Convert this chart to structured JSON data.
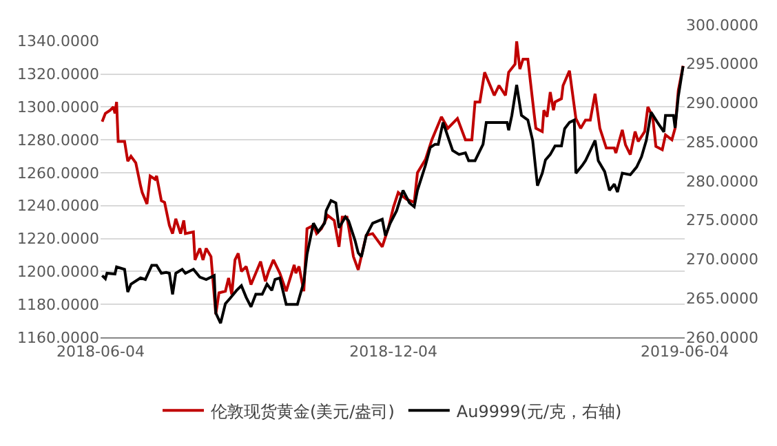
{
  "chart_data": {
    "type": "line",
    "xlim": [
      "2018-06-04",
      "2019-06-04"
    ],
    "xticks": [
      {
        "value": "2018-06-04",
        "label": "2018-06-04"
      },
      {
        "value": "2018-12-04",
        "label": "2018-12-04"
      },
      {
        "value": "2019-06-04",
        "label": "2019-06-04"
      }
    ],
    "ylim": [
      1160,
      1340
    ],
    "yticks": [
      {
        "value": 1160,
        "label": "1160.0000"
      },
      {
        "value": 1180,
        "label": "1180.0000"
      },
      {
        "value": 1200,
        "label": "1200.0000"
      },
      {
        "value": 1220,
        "label": "1220.0000"
      },
      {
        "value": 1240,
        "label": "1240.0000"
      },
      {
        "value": 1260,
        "label": "1260.0000"
      },
      {
        "value": 1280,
        "label": "1280.0000"
      },
      {
        "value": 1300,
        "label": "1300.0000"
      },
      {
        "value": 1320,
        "label": "1320.0000"
      },
      {
        "value": 1340,
        "label": "1340.0000"
      }
    ],
    "y2lim": [
      260,
      300
    ],
    "y2ticks": [
      {
        "value": 260,
        "label": "260.0000"
      },
      {
        "value": 265,
        "label": "265.0000"
      },
      {
        "value": 270,
        "label": "270.0000"
      },
      {
        "value": 275,
        "label": "275.0000"
      },
      {
        "value": 280,
        "label": "280.0000"
      },
      {
        "value": 285,
        "label": "285.0000"
      },
      {
        "value": 290,
        "label": "290.0000"
      },
      {
        "value": 295,
        "label": "295.0000"
      },
      {
        "value": 300,
        "label": "300.0000"
      }
    ],
    "grid": "y",
    "legend": "bottom",
    "marker": "none",
    "line_style": "solid",
    "series": [
      {
        "name": "伦敦现货黄金(美元/盎司)",
        "color": "#c00000",
        "x": [
          "2018-06-05",
          "2018-06-07",
          "2018-06-10",
          "2018-06-12",
          "2018-06-13",
          "2018-06-14",
          "2018-06-15",
          "2018-06-19",
          "2018-06-21",
          "2018-06-23",
          "2018-06-26",
          "2018-06-29",
          "2018-06-30",
          "2018-07-03",
          "2018-07-05",
          "2018-07-08",
          "2018-07-09",
          "2018-07-12",
          "2018-07-14",
          "2018-07-17",
          "2018-07-19",
          "2018-07-21",
          "2018-07-24",
          "2018-07-26",
          "2018-07-27",
          "2018-08-01",
          "2018-08-02",
          "2018-08-05",
          "2018-08-07",
          "2018-08-09",
          "2018-08-12",
          "2018-08-15",
          "2018-08-17",
          "2018-08-21",
          "2018-08-23",
          "2018-08-25",
          "2018-08-27",
          "2018-08-29",
          "2018-08-31",
          "2018-09-03",
          "2018-09-06",
          "2018-09-09",
          "2018-09-12",
          "2018-09-15",
          "2018-09-17",
          "2018-09-20",
          "2018-09-24",
          "2018-09-28",
          "2018-10-03",
          "2018-10-04",
          "2018-10-06",
          "2018-10-09",
          "2018-10-11",
          "2018-10-15",
          "2018-10-17",
          "2018-10-20",
          "2018-10-24",
          "2018-10-28",
          "2018-10-31",
          "2018-11-02",
          "2018-11-05",
          "2018-11-09",
          "2018-11-12",
          "2018-11-17",
          "2018-11-21",
          "2018-11-27",
          "2018-12-01",
          "2018-12-04",
          "2018-12-07",
          "2018-12-12",
          "2018-12-17",
          "2018-12-19",
          "2018-12-24",
          "2018-12-28",
          "2019-01-03",
          "2019-01-07",
          "2019-01-13",
          "2019-01-18",
          "2019-01-22",
          "2019-01-24",
          "2019-01-27",
          "2019-01-30",
          "2019-02-05",
          "2019-02-08",
          "2019-02-12",
          "2019-02-14",
          "2019-02-18",
          "2019-02-19",
          "2019-02-21",
          "2019-02-23",
          "2019-02-26",
          "2019-03-02",
          "2019-03-03",
          "2019-03-07",
          "2019-03-08",
          "2019-03-10",
          "2019-03-12",
          "2019-03-14",
          "2019-03-15",
          "2019-03-19",
          "2019-03-20",
          "2019-03-24",
          "2019-03-28",
          "2019-03-31",
          "2019-04-03",
          "2019-04-06",
          "2019-04-09",
          "2019-04-12",
          "2019-04-16",
          "2019-04-21",
          "2019-04-22",
          "2019-04-26",
          "2019-04-28",
          "2019-05-01",
          "2019-05-04",
          "2019-05-06",
          "2019-05-10",
          "2019-05-12",
          "2019-05-15",
          "2019-05-17",
          "2019-05-21",
          "2019-05-23",
          "2019-05-27",
          "2019-05-29",
          "2019-05-31",
          "2019-06-03"
        ],
        "values": [
          1291,
          1296,
          1298,
          1300,
          1296,
          1303,
          1279,
          1279,
          1267,
          1270,
          1266,
          1252,
          1248,
          1241,
          1258,
          1256,
          1258,
          1243,
          1242,
          1228,
          1223,
          1232,
          1223,
          1231,
          1223,
          1224,
          1207,
          1214,
          1207,
          1214,
          1209,
          1174,
          1187,
          1188,
          1196,
          1186,
          1207,
          1211,
          1200,
          1203,
          1192,
          1199,
          1206,
          1194,
          1200,
          1207,
          1199,
          1188,
          1204,
          1199,
          1203,
          1188,
          1226,
          1228,
          1223,
          1226,
          1234,
          1231,
          1215,
          1233,
          1233,
          1209,
          1201,
          1222,
          1223,
          1215,
          1227,
          1239,
          1248,
          1244,
          1242,
          1260,
          1268,
          1280,
          1294,
          1287,
          1293,
          1280,
          1280,
          1303,
          1303,
          1321,
          1307,
          1313,
          1307,
          1321,
          1326,
          1340,
          1323,
          1329,
          1329,
          1295,
          1287,
          1285,
          1298,
          1294,
          1309,
          1298,
          1303,
          1305,
          1313,
          1322,
          1293,
          1287,
          1292,
          1292,
          1308,
          1287,
          1275,
          1275,
          1272,
          1286,
          1277,
          1271,
          1285,
          1279,
          1285,
          1300,
          1294,
          1276,
          1274,
          1283,
          1280,
          1287,
          1310,
          1325
        ]
      },
      {
        "name": "Au9999(元/克，右轴)",
        "color": "#000000",
        "axis": "y2",
        "x": [
          "2018-06-05",
          "2018-06-07",
          "2018-06-08",
          "2018-06-13",
          "2018-06-14",
          "2018-06-19",
          "2018-06-21",
          "2018-06-23",
          "2018-06-29",
          "2018-07-02",
          "2018-07-06",
          "2018-07-09",
          "2018-07-12",
          "2018-07-15",
          "2018-07-17",
          "2018-07-19",
          "2018-07-21",
          "2018-07-25",
          "2018-07-27",
          "2018-08-01",
          "2018-08-05",
          "2018-08-09",
          "2018-08-14",
          "2018-08-15",
          "2018-08-18",
          "2018-08-21",
          "2018-08-24",
          "2018-08-28",
          "2018-08-31",
          "2018-09-03",
          "2018-09-06",
          "2018-09-09",
          "2018-09-13",
          "2018-09-16",
          "2018-09-19",
          "2018-09-21",
          "2018-09-24",
          "2018-09-28",
          "2018-10-02",
          "2018-10-05",
          "2018-10-09",
          "2018-10-11",
          "2018-10-15",
          "2018-10-18",
          "2018-10-22",
          "2018-10-23",
          "2018-10-26",
          "2018-10-29",
          "2018-10-31",
          "2018-11-04",
          "2018-11-06",
          "2018-11-10",
          "2018-11-12",
          "2018-11-14",
          "2018-11-17",
          "2018-11-21",
          "2018-11-27",
          "2018-11-29",
          "2018-12-02",
          "2018-12-06",
          "2018-12-10",
          "2018-12-14",
          "2018-12-17",
          "2018-12-19",
          "2018-12-24",
          "2018-12-27",
          "2018-12-30",
          "2019-01-01",
          "2019-01-04",
          "2019-01-06",
          "2019-01-10",
          "2019-01-14",
          "2019-01-18",
          "2019-01-20",
          "2019-01-24",
          "2019-01-29",
          "2019-01-31",
          "2019-02-06",
          "2019-02-13",
          "2019-02-14",
          "2019-02-16",
          "2019-02-19",
          "2019-02-22",
          "2019-02-26",
          "2019-03-01",
          "2019-03-04",
          "2019-03-07",
          "2019-03-09",
          "2019-03-12",
          "2019-03-15",
          "2019-03-19",
          "2019-03-21",
          "2019-03-24",
          "2019-03-27",
          "2019-03-28",
          "2019-04-01",
          "2019-04-03",
          "2019-04-09",
          "2019-04-11",
          "2019-04-15",
          "2019-04-18",
          "2019-04-21",
          "2019-04-23",
          "2019-04-26",
          "2019-05-01",
          "2019-05-05",
          "2019-05-08",
          "2019-05-11",
          "2019-05-14",
          "2019-05-18",
          "2019-05-22",
          "2019-05-23",
          "2019-05-28",
          "2019-05-29",
          "2019-05-31",
          "2019-06-03"
        ],
        "values": [
          267.9,
          267.5,
          268.2,
          268.1,
          269.0,
          268.7,
          265.8,
          266.8,
          267.6,
          267.4,
          269.2,
          269.2,
          268.2,
          268.3,
          268.2,
          265.5,
          268.2,
          268.7,
          268.2,
          268.7,
          267.7,
          267.4,
          267.9,
          263.1,
          261.8,
          264.3,
          265.0,
          266.0,
          266.6,
          265.1,
          263.9,
          265.5,
          265.5,
          266.8,
          266.0,
          267.4,
          267.6,
          264.2,
          264.2,
          264.2,
          267.1,
          270.6,
          274.6,
          273.5,
          274.6,
          276.2,
          277.5,
          277.2,
          274.0,
          275.4,
          274.9,
          272.4,
          270.8,
          270.3,
          273.0,
          274.6,
          275.1,
          273.0,
          274.6,
          276.2,
          278.8,
          277.2,
          276.7,
          278.8,
          282.0,
          284.3,
          284.7,
          284.7,
          287.5,
          286.3,
          283.9,
          283.4,
          283.6,
          282.6,
          282.6,
          284.7,
          287.5,
          287.5,
          287.5,
          286.5,
          288.4,
          292.3,
          288.4,
          287.8,
          285.2,
          279.4,
          281.0,
          282.7,
          283.4,
          284.5,
          284.5,
          286.7,
          287.5,
          287.8,
          281.0,
          282.0,
          282.6,
          285.2,
          282.6,
          281.2,
          278.8,
          279.6,
          278.6,
          281.0,
          280.8,
          281.8,
          283.1,
          285.2,
          288.8,
          287.5,
          286.3,
          288.4,
          288.4,
          286.8,
          290.8,
          294.7
        ]
      }
    ]
  }
}
